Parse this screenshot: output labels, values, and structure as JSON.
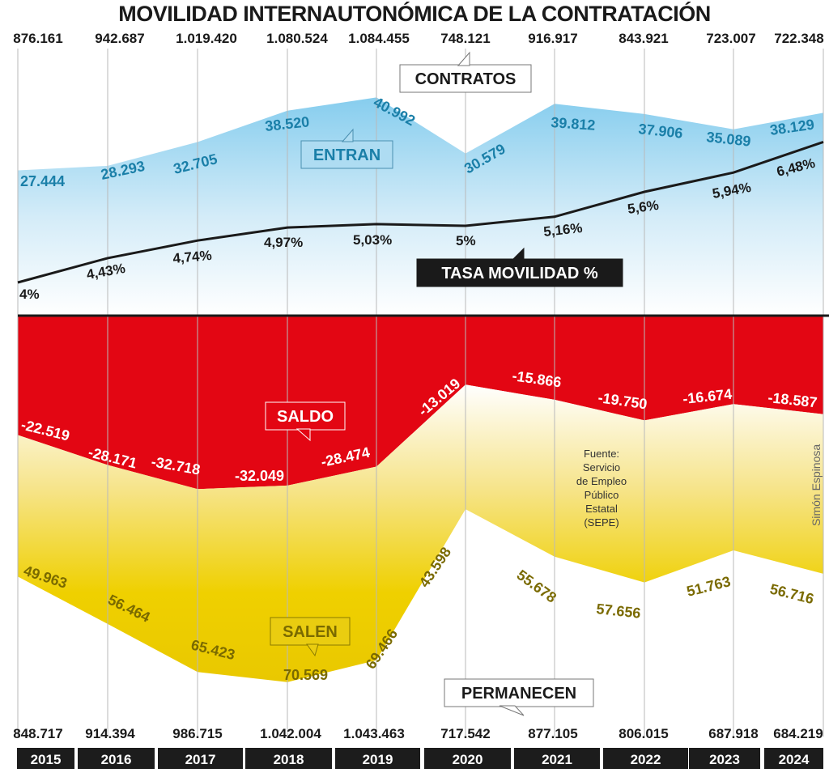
{
  "chart_data": {
    "type": "area",
    "title": "MOVILIDAD INTERNAUTONÓMICA DE LA CONTRATACIÓN",
    "categories": [
      "2015",
      "2016",
      "2017",
      "2018",
      "2019",
      "2020",
      "2021",
      "2022",
      "2023",
      "2024"
    ],
    "contratos": {
      "label": "CONTRATOS",
      "values": [
        "876.161",
        "942.687",
        "1.019.420",
        "1.080.524",
        "1.084.455",
        "748.121",
        "916.917",
        "843.921",
        "723.007",
        "722.348"
      ]
    },
    "permanecen": {
      "label": "PERMANECEN",
      "values": [
        "848.717",
        "914.394",
        "986.715",
        "1.042.004",
        "1.043.463",
        "717.542",
        "877.105",
        "806.015",
        "687.918",
        "684.219"
      ]
    },
    "series": [
      {
        "name": "ENTRAN",
        "values": [
          27444,
          28293,
          32705,
          38520,
          40992,
          30579,
          39812,
          37906,
          35089,
          38129
        ],
        "labels": [
          "27.444",
          "28.293",
          "32.705",
          "38.520",
          "40.992",
          "30.579",
          "39.812",
          "37.906",
          "35.089",
          "38.129"
        ],
        "color": "#1a7fa8"
      },
      {
        "name": "TASA MOVILIDAD %",
        "values": [
          4,
          4.43,
          4.74,
          4.97,
          5.03,
          5,
          5.16,
          5.6,
          5.94,
          6.48
        ],
        "labels": [
          "4%",
          "4,43%",
          "4,74%",
          "4,97%",
          "5,03%",
          "5%",
          "5,16%",
          "5,6%",
          "5,94%",
          "6,48%"
        ],
        "color": "#1a1a1a"
      },
      {
        "name": "SALDO",
        "values": [
          -22519,
          -28171,
          -32718,
          -32049,
          -28474,
          -13019,
          -15866,
          -19750,
          -16674,
          -18587
        ],
        "labels": [
          "-22.519",
          "-28.171",
          "-32.718",
          "-32.049",
          "-28.474",
          "-13.019",
          "-15.866",
          "-19.750",
          "-16.674",
          "-18.587"
        ],
        "color": "#e30613"
      },
      {
        "name": "SALEN",
        "values": [
          49963,
          56464,
          65423,
          70569,
          69466,
          43598,
          55678,
          57656,
          51763,
          56716
        ],
        "labels": [
          "49.963",
          "56.464",
          "65.423",
          "70.569",
          "69.466",
          "43.598",
          "55.678",
          "57.656",
          "51.763",
          "56.716"
        ],
        "color": "#7a6a00"
      }
    ],
    "source": [
      "Fuente:",
      "Servicio",
      "de Empleo",
      "Público",
      "Estatal",
      "(SEPE)"
    ],
    "author": "Simón Espinosa",
    "grid": true,
    "colors": {
      "entran_fill": "#8fd0ee",
      "saldo_fill": "#e30613",
      "salen_fill": "#efd000",
      "year_bar": "#1c1c1c"
    }
  }
}
